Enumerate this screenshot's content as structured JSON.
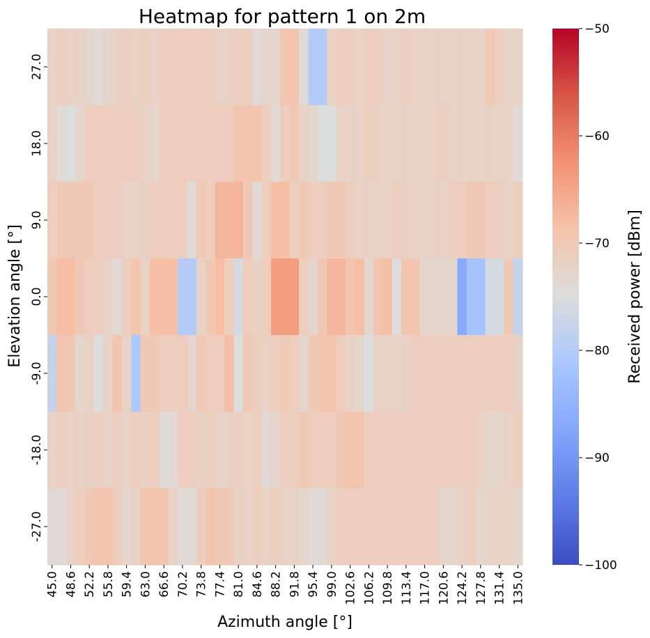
{
  "chart_data": {
    "type": "heatmap",
    "title": "Heatmap for pattern 1 on 2m",
    "xlabel": "Azimuth angle [°]",
    "ylabel": "Elevation angle [°]",
    "colorbar_label": "Received power [dBm]",
    "colormap": "coolwarm",
    "vmin": -100,
    "vmax": -50,
    "colorbar_ticks": [
      -100,
      -90,
      -80,
      -70,
      -60,
      -50
    ],
    "colorbar_tick_labels": [
      "−100",
      "−90",
      "−80",
      "−70",
      "−60",
      "−50"
    ],
    "x_ticks": [
      "45.0",
      "48.6",
      "52.2",
      "55.8",
      "59.4",
      "63.0",
      "66.6",
      "70.2",
      "73.8",
      "77.4",
      "81.0",
      "84.6",
      "88.2",
      "91.8",
      "95.4",
      "99.0",
      "102.6",
      "106.2",
      "109.8",
      "113.4",
      "117.0",
      "120.6",
      "124.2",
      "127.8",
      "131.4",
      "135.0"
    ],
    "y_ticks": [
      "27.0",
      "18.0",
      "9.0",
      "0.0",
      "-9.0",
      "-18.0",
      "-27.0"
    ],
    "x_values": [
      45.0,
      46.8,
      48.6,
      50.4,
      52.2,
      54.0,
      55.8,
      57.6,
      59.4,
      61.2,
      63.0,
      64.8,
      66.6,
      68.4,
      70.2,
      72.0,
      73.8,
      75.6,
      77.4,
      79.2,
      81.0,
      82.8,
      84.6,
      86.4,
      88.2,
      90.0,
      91.8,
      93.6,
      95.4,
      97.2,
      99.0,
      100.8,
      102.6,
      104.4,
      106.2,
      108.0,
      109.8,
      111.6,
      113.4,
      115.2,
      117.0,
      118.8,
      120.6,
      122.4,
      124.2,
      126.0,
      127.8,
      129.6,
      131.4,
      133.2,
      135.0
    ],
    "y_values": [
      27.0,
      18.0,
      9.0,
      0.0,
      -9.0,
      -18.0,
      -27.0
    ],
    "z": [
      [
        -72,
        -71,
        -72,
        -72,
        -73,
        -74,
        -73,
        -72,
        -71,
        -72,
        -71,
        -72,
        -71,
        -71,
        -71,
        -71,
        -71,
        -71,
        -72,
        -72,
        -71,
        -71,
        -74,
        -73,
        -73,
        -69,
        -69,
        -74,
        -80,
        -80,
        -72,
        -71,
        -71,
        -72,
        -71,
        -71,
        -72,
        -72,
        -71,
        -72,
        -72,
        -72,
        -72,
        -72,
        -72,
        -72,
        -72,
        -70,
        -71,
        -72,
        -72
      ],
      [
        -72,
        -74,
        -75,
        -73,
        -71,
        -71,
        -71,
        -71,
        -71,
        -71,
        -72,
        -73,
        -71,
        -71,
        -71,
        -71,
        -71,
        -71,
        -71,
        -71,
        -69,
        -69,
        -69,
        -71,
        -74,
        -71,
        -70,
        -72,
        -73,
        -75,
        -75,
        -72,
        -72,
        -72,
        -71,
        -72,
        -72,
        -72,
        -72,
        -72,
        -72,
        -72,
        -71,
        -72,
        -72,
        -72,
        -72,
        -72,
        -72,
        -72,
        -74
      ],
      [
        -71,
        -70,
        -70,
        -70,
        -70,
        -71,
        -71,
        -71,
        -72,
        -72,
        -72,
        -71,
        -71,
        -71,
        -71,
        -74,
        -70,
        -71,
        -67,
        -67,
        -67,
        -70,
        -74,
        -71,
        -68,
        -68,
        -71,
        -70,
        -71,
        -71,
        -70,
        -70,
        -71,
        -72,
        -72,
        -72,
        -72,
        -71,
        -72,
        -72,
        -72,
        -72,
        -72,
        -71,
        -71,
        -70,
        -70,
        -71,
        -71,
        -72,
        -71
      ],
      [
        -70,
        -68,
        -68,
        -70,
        -71,
        -71,
        -72,
        -74,
        -71,
        -69,
        -72,
        -68,
        -68,
        -68,
        -80,
        -80,
        -72,
        -70,
        -68,
        -71,
        -76,
        -71,
        -72,
        -71,
        -64,
        -64,
        -64,
        -71,
        -73,
        -70,
        -67,
        -67,
        -69,
        -68,
        -73,
        -69,
        -68,
        -75,
        -69,
        -69,
        -73,
        -73,
        -73,
        -73,
        -87,
        -82,
        -82,
        -76,
        -76,
        -70,
        -78
      ],
      [
        -78,
        -69,
        -70,
        -73,
        -72,
        -75,
        -72,
        -69,
        -72,
        -81,
        -70,
        -70,
        -71,
        -71,
        -71,
        -73,
        -70,
        -71,
        -71,
        -68,
        -75,
        -70,
        -71,
        -72,
        -71,
        -70,
        -71,
        -73,
        -70,
        -69,
        -69,
        -71,
        -72,
        -73,
        -75,
        -72,
        -72,
        -72,
        -72,
        -71,
        -71,
        -71,
        -71,
        -71,
        -71,
        -71,
        -71,
        -71,
        -71,
        -71,
        -72
      ],
      [
        -72,
        -71,
        -72,
        -72,
        -72,
        -71,
        -72,
        -71,
        -72,
        -71,
        -72,
        -71,
        -74,
        -74,
        -71,
        -71,
        -72,
        -71,
        -72,
        -72,
        -71,
        -72,
        -71,
        -74,
        -73,
        -71,
        -71,
        -70,
        -71,
        -71,
        -71,
        -70,
        -69,
        -69,
        -71,
        -71,
        -71,
        -71,
        -71,
        -71,
        -71,
        -71,
        -71,
        -71,
        -71,
        -71,
        -72,
        -73,
        -73,
        -72,
        -71
      ],
      [
        -74,
        -74,
        -72,
        -71,
        -70,
        -69,
        -69,
        -71,
        -73,
        -72,
        -69,
        -69,
        -69,
        -72,
        -74,
        -74,
        -71,
        -69,
        -70,
        -70,
        -72,
        -72,
        -71,
        -72,
        -71,
        -72,
        -72,
        -73,
        -74,
        -74,
        -72,
        -71,
        -71,
        -71,
        -71,
        -71,
        -71,
        -71,
        -71,
        -71,
        -71,
        -71,
        -73,
        -73,
        -72,
        -71,
        -73,
        -72,
        -72,
        -72,
        -73
      ]
    ]
  }
}
